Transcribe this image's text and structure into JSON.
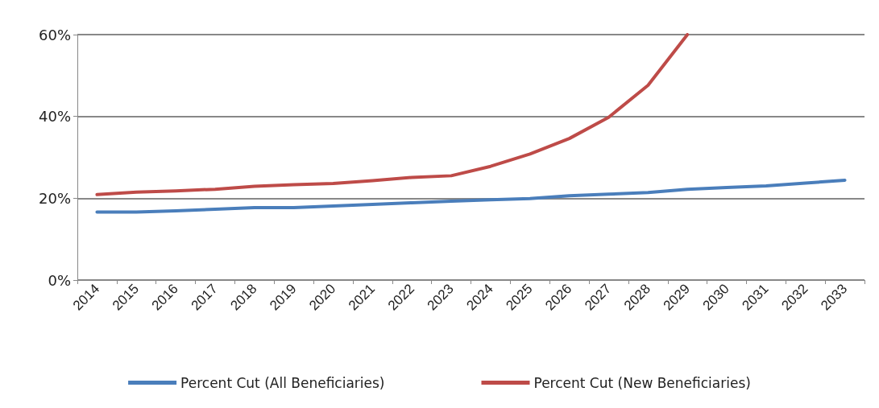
{
  "chart_data": {
    "type": "line",
    "categories": [
      "2014",
      "2015",
      "2016",
      "2017",
      "2018",
      "2019",
      "2020",
      "2021",
      "2022",
      "2023",
      "2024",
      "2025",
      "2026",
      "2027",
      "2028",
      "2029",
      "2030",
      "2031",
      "2032",
      "2033"
    ],
    "series": [
      {
        "name": "Percent Cut (All Beneficiaries)",
        "color": "#4a7ebb",
        "values": [
          16.6,
          16.6,
          16.9,
          17.3,
          17.7,
          17.7,
          18.1,
          18.5,
          18.9,
          19.3,
          19.6,
          19.9,
          20.6,
          21.0,
          21.4,
          22.2,
          22.6,
          23.0,
          23.7,
          24.4
        ]
      },
      {
        "name": "Percent Cut (New Beneficiaries)",
        "color": "#be4b48",
        "values": [
          20.9,
          21.5,
          21.8,
          22.2,
          22.9,
          23.3,
          23.6,
          24.3,
          25.1,
          25.5,
          27.8,
          30.8,
          34.6,
          39.8,
          47.6,
          60,
          null,
          null,
          null,
          null
        ]
      }
    ],
    "ylim": [
      0,
      60
    ],
    "yticks": [
      {
        "value": 0,
        "label": "0%"
      },
      {
        "value": 20,
        "label": "20%"
      },
      {
        "value": 40,
        "label": "40%"
      },
      {
        "value": 60,
        "label": "60%"
      }
    ],
    "grid": "y",
    "legend": "bottom",
    "marker": "none",
    "line_style": "solid"
  }
}
